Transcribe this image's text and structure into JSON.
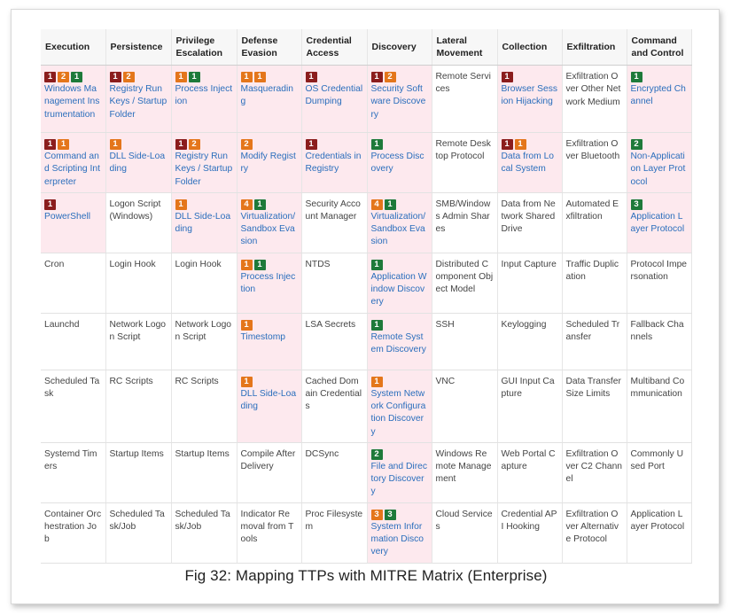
{
  "caption": "Fig 32: Mapping TTPs with MITRE Matrix (Enterprise)",
  "colors": {
    "red": "#8b1d1d",
    "orange": "#e4761b",
    "green": "#1e7a3a",
    "highlight": "#fde9ee",
    "link": "#2a6ebc"
  },
  "headers": [
    "Execution",
    "Persistence",
    "Privilege Escalation",
    "Defense Evasion",
    "Credential Access",
    "Discovery",
    "Lateral Movement",
    "Collection",
    "Exfiltration",
    "Command and Control"
  ],
  "rows": [
    [
      {
        "t": "Windows Management Instrumentation",
        "b": [
          [
            "1",
            "red"
          ],
          [
            "2",
            "orange"
          ],
          [
            "1",
            "green"
          ]
        ]
      },
      {
        "t": "Registry Run Keys / Startup Folder",
        "b": [
          [
            "1",
            "red"
          ],
          [
            "2",
            "orange"
          ]
        ]
      },
      {
        "t": "Process Injection",
        "b": [
          [
            "1",
            "orange"
          ],
          [
            "1",
            "green"
          ]
        ]
      },
      {
        "t": "Masquerading",
        "b": [
          [
            "1",
            "orange"
          ],
          [
            "1",
            "orange"
          ]
        ]
      },
      {
        "t": "OS Credential Dumping",
        "b": [
          [
            "1",
            "red"
          ]
        ]
      },
      {
        "t": "Security Software Discovery",
        "b": [
          [
            "1",
            "red"
          ],
          [
            "2",
            "orange"
          ]
        ]
      },
      {
        "t": "Remote Services",
        "b": []
      },
      {
        "t": "Browser Session Hijacking",
        "b": [
          [
            "1",
            "red"
          ]
        ]
      },
      {
        "t": "Exfiltration Over Other Network Medium",
        "b": []
      },
      {
        "t": "Encrypted Channel",
        "b": [
          [
            "1",
            "green"
          ]
        ]
      }
    ],
    [
      {
        "t": "Command and Scripting Interpreter",
        "b": [
          [
            "1",
            "red"
          ],
          [
            "1",
            "orange"
          ]
        ]
      },
      {
        "t": "DLL Side-Loading",
        "b": [
          [
            "1",
            "orange"
          ]
        ]
      },
      {
        "t": "Registry Run Keys / Startup Folder",
        "b": [
          [
            "1",
            "red"
          ],
          [
            "2",
            "orange"
          ]
        ]
      },
      {
        "t": "Modify Registry",
        "b": [
          [
            "2",
            "orange"
          ]
        ]
      },
      {
        "t": "Credentials in Registry",
        "b": [
          [
            "1",
            "red"
          ]
        ]
      },
      {
        "t": "Process Discovery",
        "b": [
          [
            "1",
            "green"
          ]
        ]
      },
      {
        "t": "Remote Desktop Protocol",
        "b": []
      },
      {
        "t": "Data from Local System",
        "b": [
          [
            "1",
            "red"
          ],
          [
            "1",
            "orange"
          ]
        ]
      },
      {
        "t": "Exfiltration Over Bluetooth",
        "b": []
      },
      {
        "t": "Non-Application Layer Protocol",
        "b": [
          [
            "2",
            "green"
          ]
        ]
      }
    ],
    [
      {
        "t": "PowerShell",
        "b": [
          [
            "1",
            "red"
          ]
        ]
      },
      {
        "t": "Logon Script (Windows)",
        "b": []
      },
      {
        "t": "DLL Side-Loading",
        "b": [
          [
            "1",
            "orange"
          ]
        ]
      },
      {
        "t": "Virtualization/Sandbox Evasion",
        "b": [
          [
            "4",
            "orange"
          ],
          [
            "1",
            "green"
          ]
        ]
      },
      {
        "t": "Security Account Manager",
        "b": []
      },
      {
        "t": "Virtualization/Sandbox Evasion",
        "b": [
          [
            "4",
            "orange"
          ],
          [
            "1",
            "green"
          ]
        ]
      },
      {
        "t": "SMB/Windows Admin Shares",
        "b": []
      },
      {
        "t": "Data from Network Shared Drive",
        "b": []
      },
      {
        "t": "Automated Exfiltration",
        "b": []
      },
      {
        "t": "Application Layer Protocol",
        "b": [
          [
            "3",
            "green"
          ]
        ]
      }
    ],
    [
      {
        "t": "Cron",
        "b": []
      },
      {
        "t": "Login Hook",
        "b": []
      },
      {
        "t": "Login Hook",
        "b": []
      },
      {
        "t": "Process Injection",
        "b": [
          [
            "1",
            "orange"
          ],
          [
            "1",
            "green"
          ]
        ]
      },
      {
        "t": "NTDS",
        "b": []
      },
      {
        "t": "Application Window Discovery",
        "b": [
          [
            "1",
            "green"
          ]
        ]
      },
      {
        "t": "Distributed Component Object Model",
        "b": []
      },
      {
        "t": "Input Capture",
        "b": []
      },
      {
        "t": "Traffic Duplication",
        "b": []
      },
      {
        "t": "Protocol Impersonation",
        "b": []
      }
    ],
    [
      {
        "t": "Launchd",
        "b": []
      },
      {
        "t": "Network Logon Script",
        "b": []
      },
      {
        "t": "Network Logon Script",
        "b": []
      },
      {
        "t": "Timestomp",
        "b": [
          [
            "1",
            "orange"
          ]
        ]
      },
      {
        "t": "LSA Secrets",
        "b": []
      },
      {
        "t": "Remote System Discovery",
        "b": [
          [
            "1",
            "green"
          ]
        ]
      },
      {
        "t": "SSH",
        "b": []
      },
      {
        "t": "Keylogging",
        "b": []
      },
      {
        "t": "Scheduled Transfer",
        "b": []
      },
      {
        "t": "Fallback Channels",
        "b": []
      }
    ],
    [
      {
        "t": "Scheduled Task",
        "b": []
      },
      {
        "t": "RC Scripts",
        "b": []
      },
      {
        "t": "RC Scripts",
        "b": []
      },
      {
        "t": "DLL Side-Loading",
        "b": [
          [
            "1",
            "orange"
          ]
        ]
      },
      {
        "t": "Cached Domain Credentials",
        "b": []
      },
      {
        "t": "System Network Configuration Discovery",
        "b": [
          [
            "1",
            "orange"
          ]
        ]
      },
      {
        "t": "VNC",
        "b": []
      },
      {
        "t": "GUI Input Capture",
        "b": []
      },
      {
        "t": "Data Transfer Size Limits",
        "b": []
      },
      {
        "t": "Multiband Communication",
        "b": []
      }
    ],
    [
      {
        "t": "Systemd Timers",
        "b": []
      },
      {
        "t": "Startup Items",
        "b": []
      },
      {
        "t": "Startup Items",
        "b": []
      },
      {
        "t": "Compile After Delivery",
        "b": []
      },
      {
        "t": "DCSync",
        "b": []
      },
      {
        "t": "File and Directory Discovery",
        "b": [
          [
            "2",
            "green"
          ]
        ]
      },
      {
        "t": "Windows Remote Management",
        "b": []
      },
      {
        "t": "Web Portal Capture",
        "b": []
      },
      {
        "t": "Exfiltration Over C2 Channel",
        "b": []
      },
      {
        "t": "Commonly Used Port",
        "b": []
      }
    ],
    [
      {
        "t": "Container Orchestration Job",
        "b": []
      },
      {
        "t": "Scheduled Task/Job",
        "b": []
      },
      {
        "t": "Scheduled Task/Job",
        "b": []
      },
      {
        "t": "Indicator Removal from Tools",
        "b": []
      },
      {
        "t": "Proc Filesystem",
        "b": []
      },
      {
        "t": "System Information Discovery",
        "b": [
          [
            "3",
            "orange"
          ],
          [
            "3",
            "green"
          ]
        ]
      },
      {
        "t": "Cloud Services",
        "b": []
      },
      {
        "t": "Credential API Hooking",
        "b": []
      },
      {
        "t": "Exfiltration Over Alternative Protocol",
        "b": []
      },
      {
        "t": "Application Layer Protocol",
        "b": []
      }
    ]
  ]
}
